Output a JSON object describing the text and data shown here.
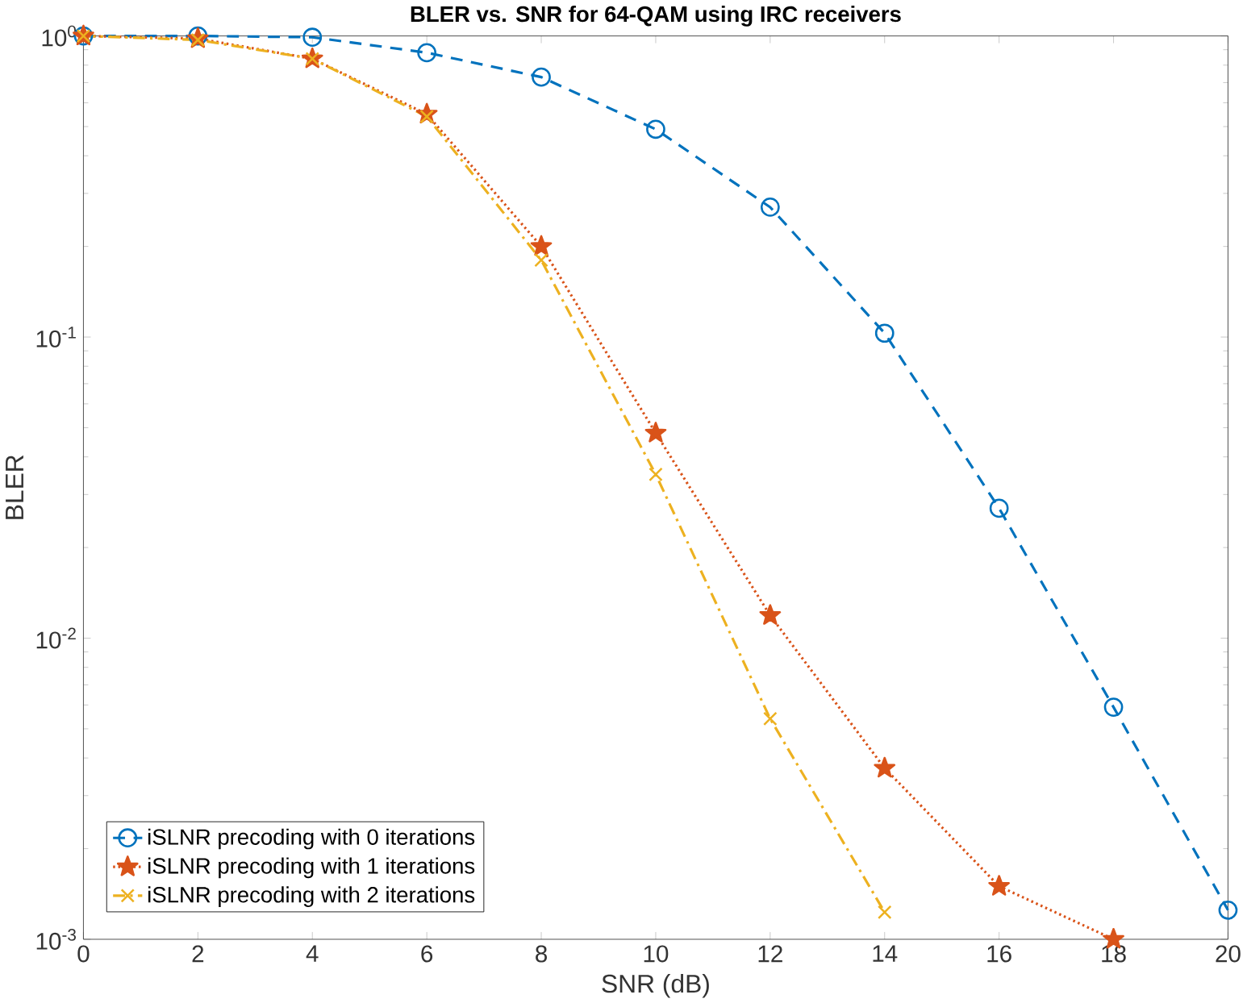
{
  "chart_data": {
    "type": "line",
    "title": "BLER vs. SNR for 64-QAM using IRC receivers",
    "xlabel": "SNR (dB)",
    "ylabel": "BLER",
    "log": "y",
    "xlim": [
      0,
      20
    ],
    "xticks": [
      0,
      2,
      4,
      6,
      8,
      10,
      12,
      14,
      16,
      18,
      20
    ],
    "ylim": [
      0.001,
      1
    ],
    "yticks": [
      {
        "value": 0.001,
        "label": "10$^{-3}$"
      },
      {
        "value": 0.01,
        "label": "10$^{-2}$"
      },
      {
        "value": 0.1,
        "label": "10$^{-1}$"
      },
      {
        "value": 1,
        "label": "10$^{0}$"
      }
    ],
    "grid": false,
    "legend": "bottom left",
    "series": [
      {
        "name": "iSLNR precoding with 0 iterations",
        "color": "#0072bd",
        "marker": "circle",
        "line_style": "dashed",
        "x": [
          0,
          2,
          4,
          6,
          8,
          10,
          12,
          14,
          16,
          18,
          20
        ],
        "values": [
          1.0,
          1.0,
          0.99,
          0.88,
          0.73,
          0.49,
          0.27,
          0.103,
          0.027,
          0.0059,
          0.00125
        ]
      },
      {
        "name": "iSLNR precoding with 1 iterations",
        "color": "#d95319",
        "marker": "star",
        "line_style": "dotted",
        "x": [
          0,
          2,
          4,
          6,
          8,
          10,
          12,
          14,
          16,
          18
        ],
        "values": [
          1.0,
          0.98,
          0.84,
          0.55,
          0.2,
          0.048,
          0.0119,
          0.0037,
          0.0015,
          0.001
        ]
      },
      {
        "name": "iSLNR precoding with 2 iterations",
        "color": "#edb120",
        "marker": "cross",
        "line_style": "dashdot",
        "x": [
          0,
          2,
          4,
          6,
          8,
          10,
          12,
          14
        ],
        "values": [
          1.0,
          0.97,
          0.84,
          0.54,
          0.18,
          0.035,
          0.0054,
          0.00123
        ]
      }
    ]
  }
}
